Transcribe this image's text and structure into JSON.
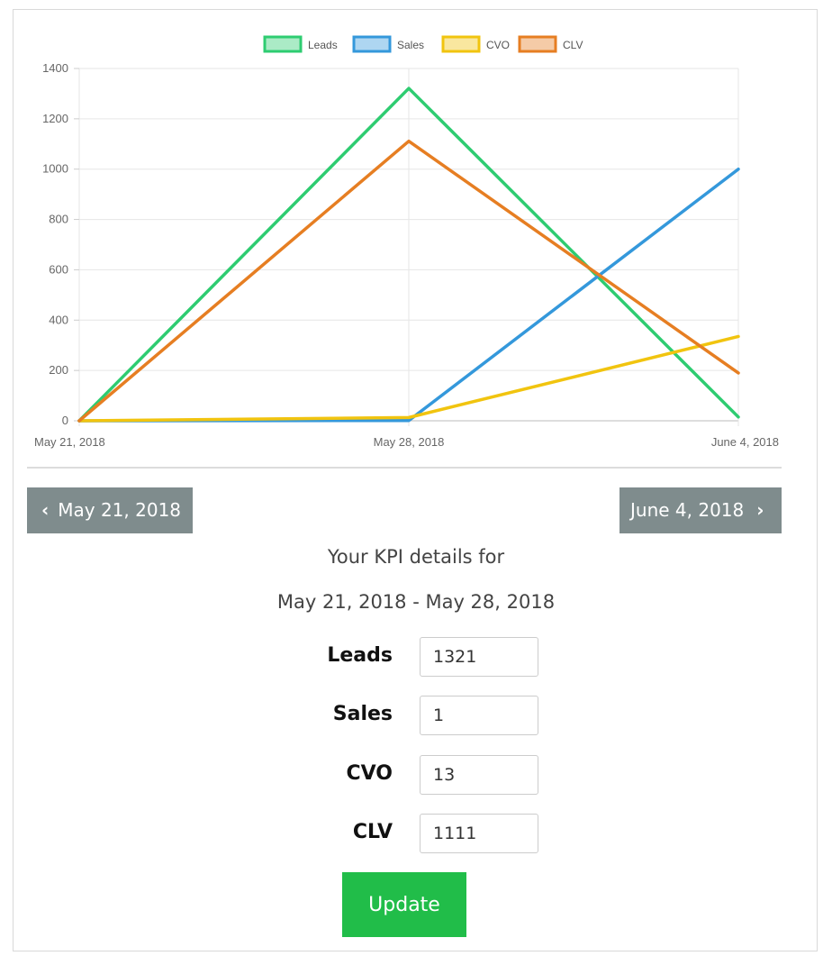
{
  "chart_data": {
    "type": "line",
    "x": [
      "May 21, 2018",
      "May 28, 2018",
      "June 4, 2018"
    ],
    "series": [
      {
        "name": "Leads",
        "values": [
          0,
          1321,
          15
        ],
        "color": "#2ecc71"
      },
      {
        "name": "Sales",
        "values": [
          0,
          1,
          1000
        ],
        "color": "#3498db"
      },
      {
        "name": "CVO",
        "values": [
          0,
          13,
          335
        ],
        "color": "#f1c40f"
      },
      {
        "name": "CLV",
        "values": [
          0,
          1111,
          190
        ],
        "color": "#e67e22"
      }
    ],
    "yticks": [
      "0",
      "200",
      "400",
      "600",
      "800",
      "1000",
      "1200",
      "1400"
    ],
    "ylim": [
      0,
      1400
    ],
    "grid": true,
    "legend_position": "top"
  },
  "nav": {
    "prev_label": "May 21, 2018",
    "next_label": "June 4, 2018",
    "prev_icon": "chevron-left-icon",
    "next_icon": "chevron-right-icon"
  },
  "details": {
    "heading": "Your KPI details for",
    "range": "May 21, 2018 - May 28, 2018",
    "fields": [
      {
        "label": "Leads",
        "value": "1321"
      },
      {
        "label": "Sales",
        "value": "1"
      },
      {
        "label": "CVO",
        "value": "13"
      },
      {
        "label": "CLV",
        "value": "1111"
      }
    ]
  },
  "update_label": "Update",
  "colors": {
    "nav_button": "#7f8c8d",
    "update_button": "#21bd49"
  }
}
